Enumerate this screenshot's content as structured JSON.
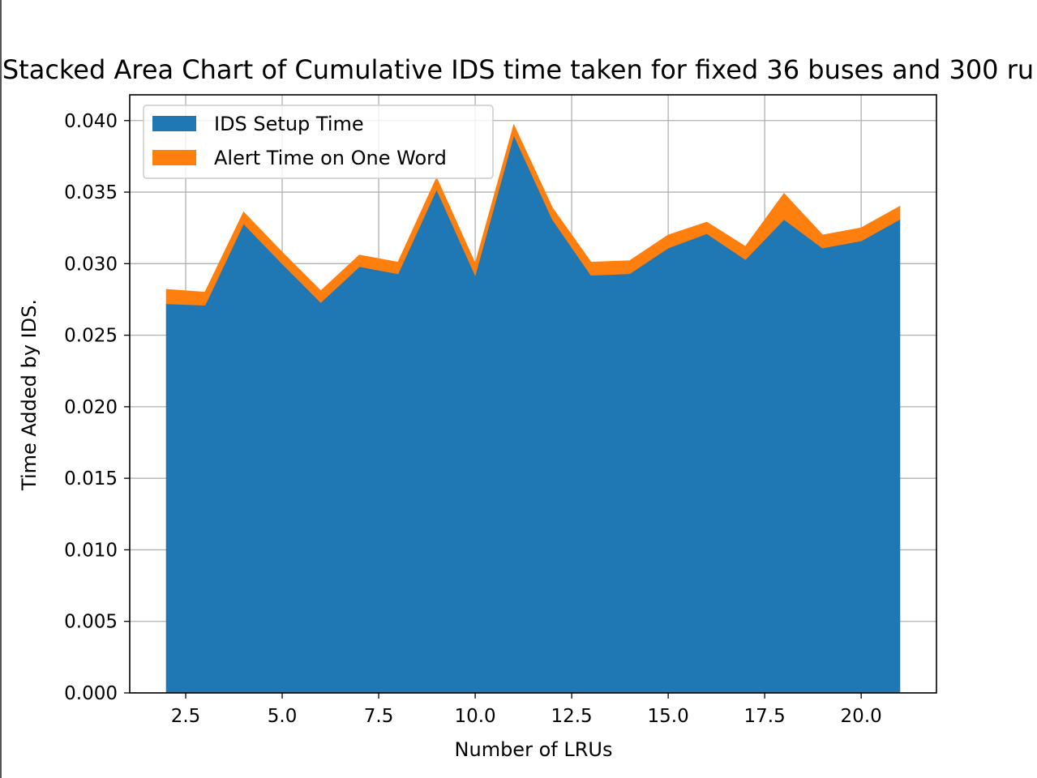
{
  "colors": {
    "setup": "#1f77b4",
    "alert": "#ff7f0e",
    "grid": "#b0b0b0",
    "axis": "#000000"
  },
  "chart_data": {
    "type": "area",
    "stacked": true,
    "title": "Stacked Area Chart of Cumulative IDS time taken for fixed 36 buses and 300 ru",
    "xlabel": "Number of LRUs",
    "ylabel": "Time Added by IDS.",
    "xlim": [
      1.05,
      21.95
    ],
    "ylim": [
      0,
      0.0418
    ],
    "xticks": [
      2.5,
      5.0,
      7.5,
      10.0,
      12.5,
      15.0,
      17.5,
      20.0
    ],
    "xtick_labels": [
      "2.5",
      "5.0",
      "7.5",
      "10.0",
      "12.5",
      "15.0",
      "17.5",
      "20.0"
    ],
    "yticks": [
      0.0,
      0.005,
      0.01,
      0.015,
      0.02,
      0.025,
      0.03,
      0.035,
      0.04
    ],
    "ytick_labels": [
      "0.000",
      "0.005",
      "0.010",
      "0.015",
      "0.020",
      "0.025",
      "0.030",
      "0.035",
      "0.040"
    ],
    "grid": true,
    "legend_position": "top-left",
    "x": [
      2,
      3,
      4,
      5,
      6,
      7,
      8,
      9,
      10,
      11,
      12,
      13,
      14,
      15,
      16,
      17,
      18,
      19,
      20,
      21
    ],
    "series": [
      {
        "name": "IDS Setup Time",
        "color": "#1f77b4",
        "values": [
          0.0272,
          0.0271,
          0.0328,
          0.03,
          0.0273,
          0.0298,
          0.0293,
          0.0352,
          0.0292,
          0.039,
          0.0331,
          0.0292,
          0.0293,
          0.0311,
          0.0321,
          0.0303,
          0.0331,
          0.0311,
          0.0316,
          0.0331
        ]
      },
      {
        "name": "Alert Time on One Word",
        "color": "#ff7f0e",
        "values": [
          0.001,
          0.0009,
          0.0008,
          0.0008,
          0.0008,
          0.0008,
          0.0008,
          0.0008,
          0.0008,
          0.0007,
          0.0008,
          0.0009,
          0.0009,
          0.0009,
          0.0008,
          0.0009,
          0.0018,
          0.0009,
          0.0009,
          0.0009
        ]
      }
    ]
  }
}
